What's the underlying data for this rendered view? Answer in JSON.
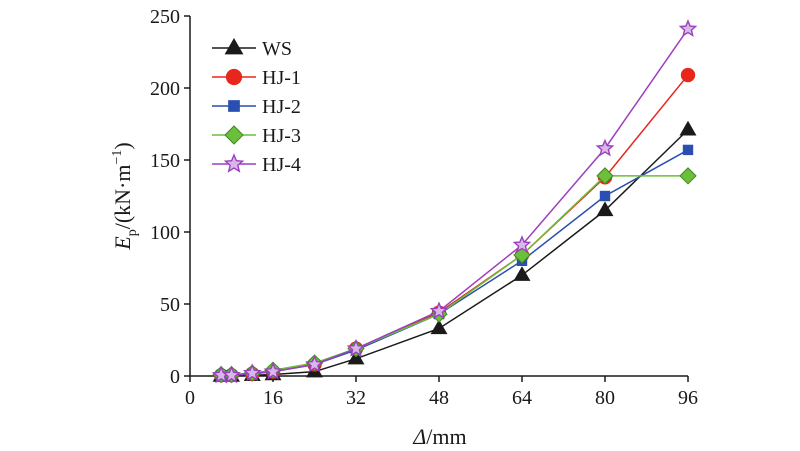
{
  "chart_data": {
    "type": "line",
    "xlabel_var": "Δ",
    "xlabel_unit": "/mm",
    "ylabel_main": "E",
    "ylabel_sub": "p",
    "ylabel_unit_a": "/(kN·m",
    "ylabel_unit_sup": "−1",
    "ylabel_unit_b": ")",
    "xlim": [
      0,
      96
    ],
    "ylim": [
      0,
      250
    ],
    "x_ticks": [
      "0",
      "16",
      "32",
      "48",
      "64",
      "80",
      "96"
    ],
    "y_ticks": [
      "0",
      "50",
      "100",
      "150",
      "200",
      "250"
    ],
    "x": [
      6,
      8,
      12,
      16,
      24,
      32,
      48,
      64,
      80,
      96
    ],
    "legend_position": "top-left",
    "series": [
      {
        "name": "WS",
        "marker": "triangle",
        "color": "#1a1a1a",
        "values": [
          0,
          0,
          0.5,
          1,
          3,
          12,
          33,
          70,
          115,
          171
        ]
      },
      {
        "name": "HJ-1",
        "marker": "circle",
        "color": "#e8261c",
        "values": [
          0.5,
          0.5,
          1.5,
          3,
          8,
          19,
          44,
          84,
          138,
          209
        ]
      },
      {
        "name": "HJ-2",
        "marker": "square",
        "color": "#2a4fb0",
        "values": [
          0.5,
          0.5,
          1.5,
          3,
          8,
          18,
          43,
          80,
          125,
          157
        ]
      },
      {
        "name": "HJ-3",
        "marker": "diamond",
        "color": "#6cbf3a",
        "values": [
          1,
          1,
          2,
          4,
          9,
          19,
          43,
          84,
          139,
          139
        ]
      },
      {
        "name": "HJ-4",
        "marker": "star",
        "color": "#9b3fbf",
        "values": [
          0.5,
          0.5,
          2,
          3,
          8,
          19,
          45,
          91,
          158,
          241
        ]
      }
    ]
  }
}
